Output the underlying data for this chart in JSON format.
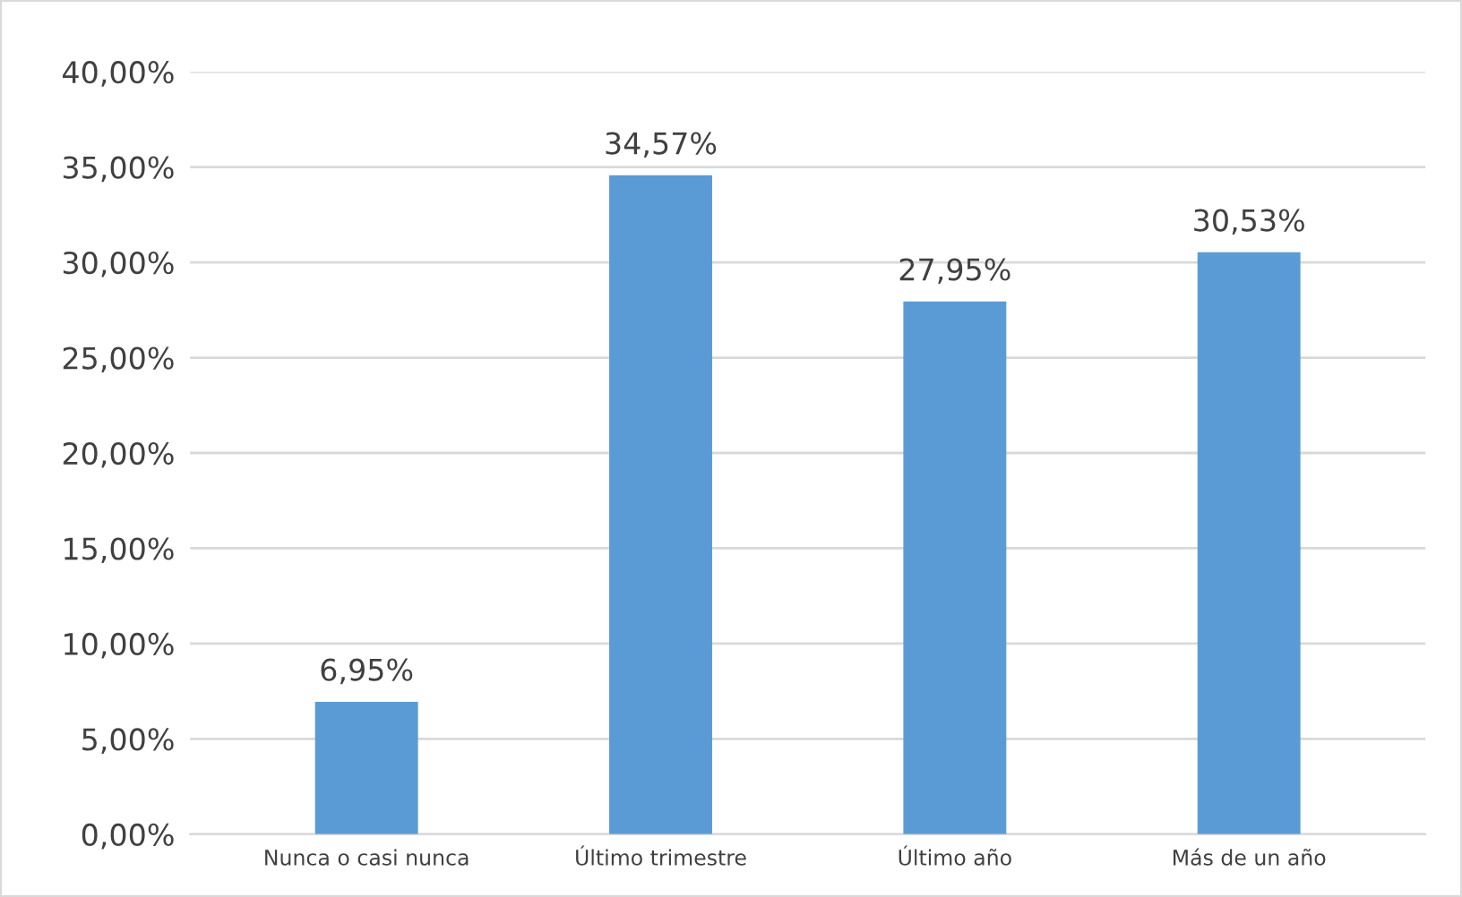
{
  "chart_data": {
    "type": "bar",
    "categories": [
      "Nunca o casi nunca",
      "Último trimestre",
      "Último año",
      "Más de un año"
    ],
    "values": [
      6.95,
      34.57,
      27.95,
      30.53
    ],
    "value_labels": [
      "6,95%",
      "34,57%",
      "27,95%",
      "30,53%"
    ],
    "color": "#5b9bd5",
    "ylim": [
      0,
      40
    ],
    "yticks": [
      {
        "value": 0,
        "label": "0,00%"
      },
      {
        "value": 5,
        "label": "5,00%"
      },
      {
        "value": 10,
        "label": "10,00%"
      },
      {
        "value": 15,
        "label": "15,00%"
      },
      {
        "value": 20,
        "label": "20,00%"
      },
      {
        "value": 25,
        "label": "25,00%"
      },
      {
        "value": 30,
        "label": "30,00%"
      },
      {
        "value": 35,
        "label": "35,00%"
      },
      {
        "value": 40,
        "label": "40,00%"
      }
    ],
    "grid": "y",
    "legend": false
  }
}
